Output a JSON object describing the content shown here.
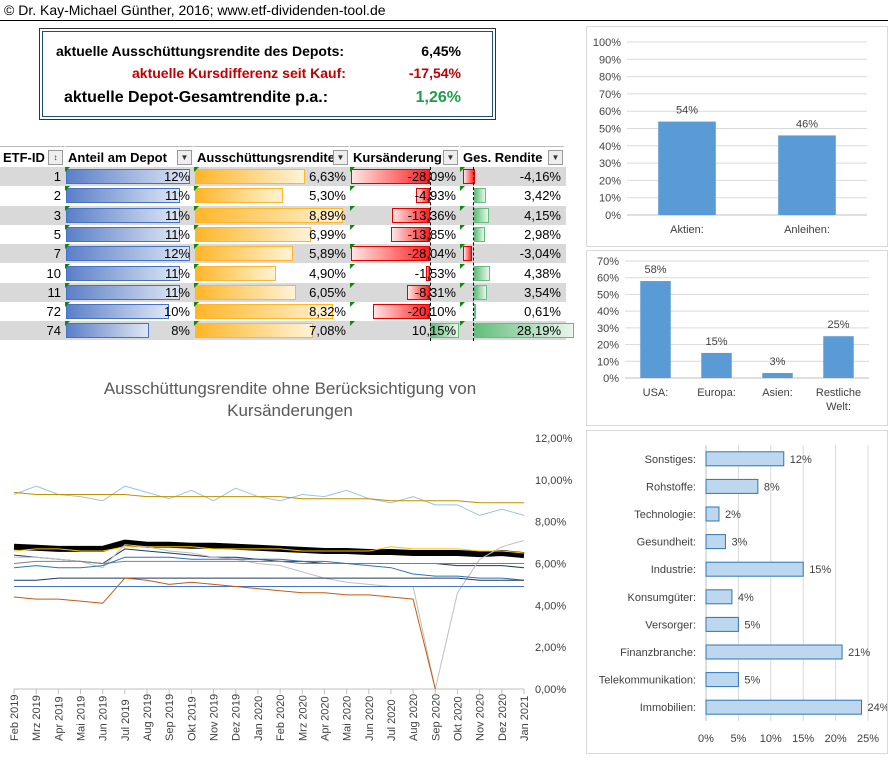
{
  "header": {
    "copyright": "© Dr. Kay-Michael Günther, 2016; www.etf-dividenden-tool.de"
  },
  "kpi": {
    "dividend_label": "aktuelle Ausschüttungsrendite des Depots:",
    "dividend_value": "6,45%",
    "price_label": "aktuelle Kursdifferenz seit Kauf:",
    "price_value": "-17,54%",
    "total_label": "aktuelle Depot-Gesamtrendite p.a.:",
    "total_value": "1,26%",
    "colors": {
      "price": "#c00000",
      "total": "#1e9e48"
    }
  },
  "table": {
    "headers": [
      "ETF-ID",
      "Anteil am Depot",
      "Ausschüttungsrendite",
      "Kursänderung",
      "Ges. Rendite"
    ],
    "rows": [
      {
        "id": "1",
        "anteil": "12%",
        "anteil_v": 12,
        "aus": "6,63%",
        "aus_v": 6.63,
        "kurs": "-28,09%",
        "kurs_v": -28.09,
        "ges": "-4,16%",
        "ges_v": -4.16
      },
      {
        "id": "2",
        "anteil": "11%",
        "anteil_v": 11,
        "aus": "5,30%",
        "aus_v": 5.3,
        "kurs": "-4,93%",
        "kurs_v": -4.93,
        "ges": "3,42%",
        "ges_v": 3.42
      },
      {
        "id": "3",
        "anteil": "11%",
        "anteil_v": 11,
        "aus": "8,89%",
        "aus_v": 8.89,
        "kurs": "-13,36%",
        "kurs_v": -13.36,
        "ges": "4,15%",
        "ges_v": 4.15
      },
      {
        "id": "5",
        "anteil": "11%",
        "anteil_v": 11,
        "aus": "6,99%",
        "aus_v": 6.99,
        "kurs": "-13,85%",
        "kurs_v": -13.85,
        "ges": "2,98%",
        "ges_v": 2.98
      },
      {
        "id": "7",
        "anteil": "12%",
        "anteil_v": 12,
        "aus": "5,89%",
        "aus_v": 5.89,
        "kurs": "-28,04%",
        "kurs_v": -28.04,
        "ges": "-3,04%",
        "ges_v": -3.04
      },
      {
        "id": "10",
        "anteil": "11%",
        "anteil_v": 11,
        "aus": "4,90%",
        "aus_v": 4.9,
        "kurs": "-1,53%",
        "kurs_v": -1.53,
        "ges": "4,38%",
        "ges_v": 4.38
      },
      {
        "id": "11",
        "anteil": "11%",
        "anteil_v": 11,
        "aus": "6,05%",
        "aus_v": 6.05,
        "kurs": "-8,31%",
        "kurs_v": -8.31,
        "ges": "3,54%",
        "ges_v": 3.54
      },
      {
        "id": "72",
        "anteil": "10%",
        "anteil_v": 10,
        "aus": "8,32%",
        "aus_v": 8.32,
        "kurs": "-20,10%",
        "kurs_v": -20.1,
        "ges": "0,61%",
        "ges_v": 0.61
      },
      {
        "id": "74",
        "anteil": "8%",
        "anteil_v": 8,
        "aus": "7,08%",
        "aus_v": 7.08,
        "kurs": "10,15%",
        "kurs_v": 10.15,
        "ges": "28,19%",
        "ges_v": 28.19
      }
    ]
  },
  "chart_data": [
    {
      "type": "bar",
      "categories": [
        "Aktien:",
        "Anleihen:"
      ],
      "values": [
        54,
        46
      ],
      "value_labels": [
        "54%",
        "46%"
      ],
      "yticks": [
        "100%",
        "90%",
        "80%",
        "70%",
        "60%",
        "50%",
        "40%",
        "30%",
        "20%",
        "10%",
        "0%"
      ],
      "ylim": [
        0,
        100
      ],
      "color": "#5b9bd5"
    },
    {
      "type": "bar",
      "categories": [
        "USA:",
        "Europa:",
        "Asien:",
        "Restliche Welt:"
      ],
      "category_lines": [
        [
          "USA:"
        ],
        [
          "Europa:"
        ],
        [
          "Asien:"
        ],
        [
          "Restliche",
          "Welt:"
        ]
      ],
      "values": [
        58,
        15,
        3,
        25
      ],
      "value_labels": [
        "58%",
        "15%",
        "3%",
        "25%"
      ],
      "yticks": [
        "70%",
        "60%",
        "50%",
        "40%",
        "30%",
        "20%",
        "10%",
        "0%"
      ],
      "ylim": [
        0,
        70
      ],
      "color": "#5b9bd5"
    },
    {
      "type": "bar",
      "orientation": "horizontal",
      "categories": [
        "Sonstiges:",
        "Rohstoffe:",
        "Technologie:",
        "Gesundheit:",
        "Industrie:",
        "Konsumgüter:",
        "Versorger:",
        "Finanzbranche:",
        "Telekommunikation:",
        "Immobilien:"
      ],
      "values": [
        12,
        8,
        2,
        3,
        15,
        4,
        5,
        21,
        5,
        24
      ],
      "value_labels": [
        "12%",
        "8%",
        "2%",
        "3%",
        "15%",
        "4%",
        "5%",
        "21%",
        "5%",
        "24%"
      ],
      "xticks": [
        "0%",
        "5%",
        "10%",
        "15%",
        "20%",
        "25%"
      ],
      "xlim": [
        0,
        25
      ],
      "color": "#bdd7ee"
    },
    {
      "type": "line",
      "title": "Ausschüttungsrendite ohne Berücksichtigung von Kursänderungen",
      "x": [
        "Feb 2019",
        "Mrz 2019",
        "Apr 2019",
        "Mai 2019",
        "Jun 2019",
        "Jul 2019",
        "Aug 2019",
        "Sep 2019",
        "Okt 2019",
        "Nov 2019",
        "Dez 2019",
        "Jan 2020",
        "Feb 2020",
        "Mrz 2020",
        "Apr 2020",
        "Mai 2020",
        "Jun 2020",
        "Jul 2020",
        "Aug 2020",
        "Sep 2020",
        "Okt 2020",
        "Nov 2020",
        "Dez 2020",
        "Jan 2021"
      ],
      "yticks": [
        "12,00%",
        "10,00%",
        "8,00%",
        "6,00%",
        "4,00%",
        "2,00%",
        "0,00%"
      ],
      "ylim": [
        0,
        12
      ],
      "series": [
        {
          "values": [
            9.3,
            9.7,
            9.3,
            9.2,
            9.0,
            9.7,
            9.4,
            9.1,
            9.5,
            9.0,
            9.6,
            9.2,
            9.0,
            9.3,
            9.2,
            9.5,
            9.1,
            8.9,
            9.2,
            8.8,
            8.8,
            8.3,
            8.6,
            8.3
          ],
          "color": "#9dc3e6",
          "width": 1
        },
        {
          "values": [
            9.4,
            9.3,
            9.3,
            9.3,
            9.3,
            9.3,
            9.2,
            9.2,
            9.2,
            9.2,
            9.2,
            9.2,
            9.2,
            9.1,
            9.1,
            9.1,
            9.1,
            9.0,
            9.0,
            9.0,
            9.0,
            8.9,
            8.9,
            8.9
          ],
          "color": "#bf9000",
          "width": 1
        },
        {
          "values": [
            6.8,
            6.75,
            6.7,
            6.7,
            6.7,
            7.0,
            6.9,
            6.9,
            6.85,
            6.85,
            6.8,
            6.75,
            6.7,
            6.65,
            6.6,
            6.6,
            6.55,
            6.55,
            6.5,
            6.5,
            6.5,
            6.45,
            6.5,
            6.4
          ],
          "color": "#000000",
          "width": 6
        },
        {
          "values": [
            6.6,
            6.7,
            6.7,
            6.6,
            6.6,
            6.8,
            6.8,
            6.8,
            6.8,
            6.7,
            6.7,
            6.7,
            6.7,
            6.6,
            6.6,
            6.6,
            6.6,
            6.8,
            6.7,
            6.7,
            6.7,
            6.6,
            6.6,
            6.5
          ],
          "color": "#ffc000",
          "width": 1
        },
        {
          "values": [
            6.4,
            6.3,
            6.2,
            6.1,
            6.0,
            6.7,
            6.6,
            6.5,
            6.4,
            6.3,
            6.3,
            6.2,
            6.1,
            6.1,
            6.0,
            6.0,
            6.0,
            6.0,
            6.0,
            6.0,
            5.9,
            5.9,
            5.9,
            5.8
          ],
          "color": "#203864",
          "width": 1
        },
        {
          "values": [
            6.3,
            6.3,
            6.2,
            6.1,
            5.8,
            6.9,
            6.8,
            6.6,
            6.5,
            6.3,
            6.2,
            6.0,
            5.9,
            5.6,
            5.3,
            5.1,
            5.0,
            4.9,
            4.9,
            0.0,
            4.6,
            6.2,
            6.8,
            7.1
          ],
          "color": "#bfbfbf",
          "width": 1
        },
        {
          "values": [
            6.0,
            6.1,
            6.1,
            6.1,
            6.0,
            6.1,
            6.1,
            6.1,
            6.1,
            6.1,
            6.1,
            6.1,
            6.1,
            6.0,
            6.0,
            6.0,
            6.0,
            6.0,
            6.0,
            6.0,
            6.0,
            6.0,
            6.0,
            6.0
          ],
          "color": "#7f7f7f",
          "width": 1
        },
        {
          "values": [
            5.8,
            5.9,
            5.8,
            5.8,
            5.9,
            6.3,
            6.3,
            6.3,
            6.2,
            6.2,
            6.2,
            6.2,
            6.2,
            6.1,
            6.1,
            6.0,
            5.9,
            5.8,
            5.5,
            5.4,
            5.4,
            5.3,
            5.3,
            5.2
          ],
          "color": "#2e75b6",
          "width": 1
        },
        {
          "values": [
            5.2,
            5.2,
            5.3,
            5.3,
            5.3,
            5.3,
            5.3,
            5.3,
            5.3,
            5.3,
            5.3,
            5.3,
            5.3,
            5.3,
            5.3,
            5.3,
            5.3,
            5.3,
            5.3,
            5.3,
            5.3,
            5.2,
            5.2,
            5.2
          ],
          "color": "#1f3864",
          "width": 1
        },
        {
          "values": [
            4.9,
            4.9,
            4.9,
            4.9,
            4.9,
            4.9,
            4.9,
            4.9,
            4.9,
            4.9,
            4.9,
            4.9,
            4.9,
            4.9,
            4.9,
            4.9,
            4.9,
            4.9,
            4.9,
            4.9,
            4.9,
            4.9,
            4.9,
            4.9
          ],
          "color": "#4472c4",
          "width": 1
        },
        {
          "values": [
            4.4,
            4.3,
            4.3,
            4.2,
            4.1,
            5.3,
            5.2,
            5.0,
            5.1,
            5.0,
            4.9,
            4.8,
            4.7,
            4.6,
            4.6,
            4.5,
            4.5,
            4.4,
            4.3,
            0.0,
            null,
            null,
            null,
            null
          ],
          "color": "#c55a11",
          "width": 1
        }
      ]
    }
  ]
}
